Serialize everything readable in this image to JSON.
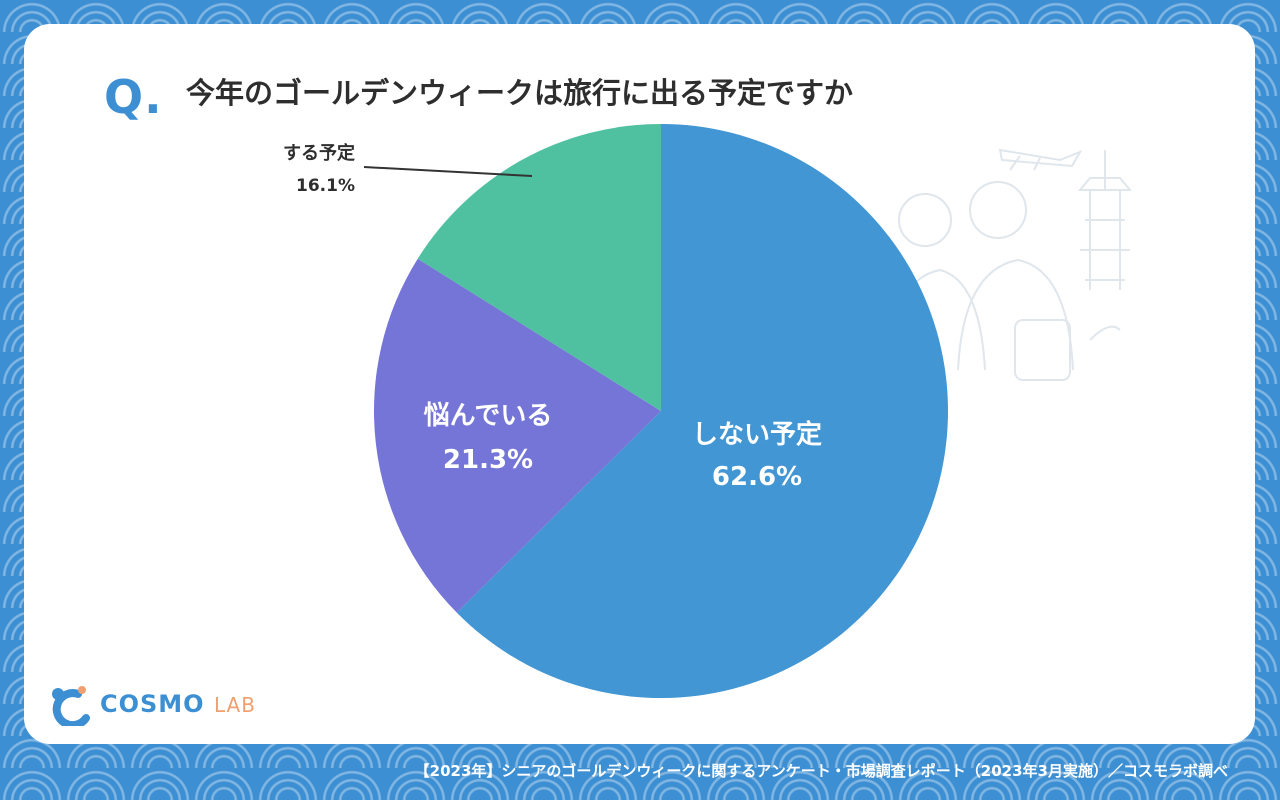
{
  "question_mark": "Q.",
  "title": "今年のゴールデンウィークは旅行に出る予定ですか",
  "logo": {
    "main": "COSMO",
    "sub": "LAB"
  },
  "footer": "【2023年】シニアのゴールデンウィークに関するアンケート・市場調査レポート（2023年3月実施）／コスモラボ調べ",
  "chart_data": {
    "type": "pie",
    "slices": [
      {
        "label": "しない予定",
        "value": 62.6,
        "display": "62.6%",
        "color": "#4196d3"
      },
      {
        "label": "悩んでいる",
        "value": 21.3,
        "display": "21.3%",
        "color": "#7575d8"
      },
      {
        "label": "する予定",
        "value": 16.1,
        "display": "16.1%",
        "color": "#4fc0a0"
      }
    ],
    "start": "12 o'clock",
    "direction": "clockwise",
    "legend": "none"
  }
}
